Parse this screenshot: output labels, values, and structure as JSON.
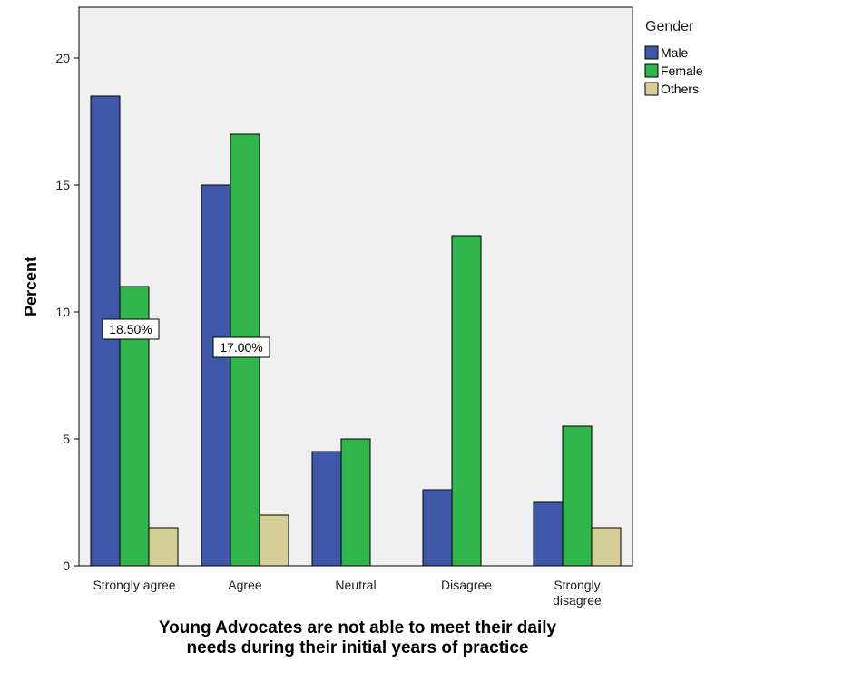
{
  "chart_data": {
    "type": "bar",
    "categories": [
      "Strongly agree",
      "Agree",
      "Neutral",
      "Disagree",
      "Strongly disagree"
    ],
    "category_lines": [
      [
        "Strongly agree"
      ],
      [
        "Agree"
      ],
      [
        "Neutral"
      ],
      [
        "Disagree"
      ],
      [
        "Strongly",
        "disagree"
      ]
    ],
    "series": [
      {
        "name": "Male",
        "color": "#3f57a9",
        "values": [
          18.5,
          15.0,
          4.5,
          3.0,
          2.5
        ]
      },
      {
        "name": "Female",
        "color": "#2fb54a",
        "values": [
          11.0,
          17.0,
          5.0,
          13.0,
          5.5
        ]
      },
      {
        "name": "Others",
        "color": "#d6cf98",
        "values": [
          1.5,
          2.0,
          null,
          null,
          1.5
        ]
      }
    ],
    "ylabel": "Percent",
    "xlabel_lines": [
      "Young Advocates are not able to meet their daily",
      "needs during their initial years of practice"
    ],
    "xlabel": "Young Advocates are not able to meet their daily needs during their initial years of practice",
    "ylim": [
      0,
      22
    ],
    "yticks": [
      0,
      5,
      10,
      15,
      20
    ],
    "legend": {
      "title": "Gender",
      "position": "right"
    },
    "annotations": [
      {
        "text": "18.50%",
        "category": "Strongly agree",
        "series": "Male"
      },
      {
        "text": "17.00%",
        "category": "Agree",
        "series": "Female"
      }
    ],
    "grid": false,
    "plot_background": "#f0f0f0"
  }
}
